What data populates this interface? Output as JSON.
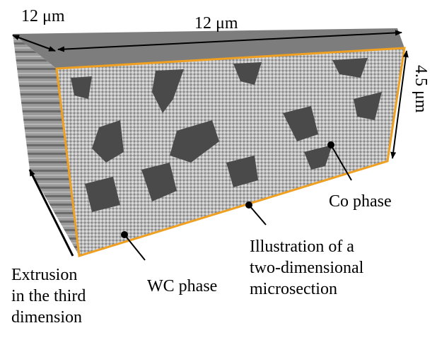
{
  "dimensions": {
    "depth": "12 μm",
    "width": "12 μm",
    "height": "4.5 μm"
  },
  "annotations": {
    "co_phase": "Co phase",
    "microsection": [
      "Illustration of a",
      "two-dimensional",
      "microsection"
    ],
    "wc_phase": "WC phase",
    "extrusion": [
      "Extrusion",
      "in the third",
      "dimension"
    ]
  }
}
